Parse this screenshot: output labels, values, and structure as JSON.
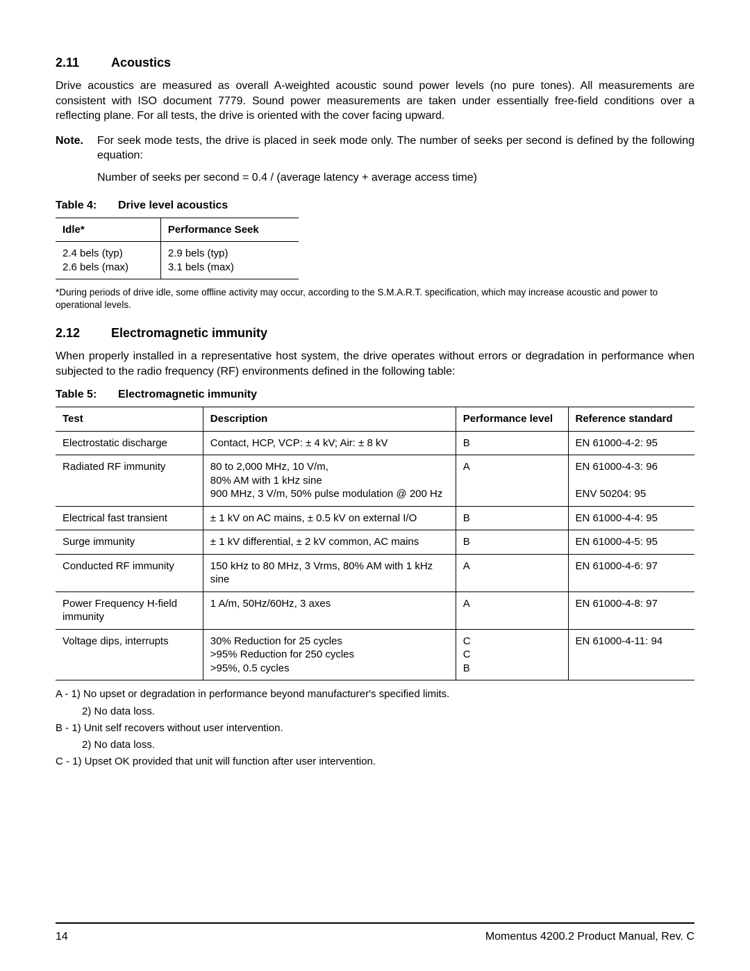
{
  "section211": {
    "num": "2.11",
    "title": "Acoustics",
    "para1": "Drive acoustics are measured as overall A-weighted acoustic sound power levels (no pure tones). All measurements are consistent with ISO document 7779. Sound power measurements are taken under essentially free-field conditions over a reflecting plane. For all tests, the drive is oriented with the cover facing upward.",
    "note_label": "Note.",
    "note_text": "For seek mode tests, the drive is placed in seek mode only. The number of seeks per second is defined by the following equation:",
    "equation": "Number of seeks per second = 0.4 / (average latency + average access time)"
  },
  "table4": {
    "caption_num": "Table 4:",
    "caption_title": "Drive level acoustics",
    "headers": [
      "Idle*",
      "Performance Seek"
    ],
    "row": [
      "2.4 bels (typ)\n2.6 bels (max)",
      "2.9 bels (typ)\n3.1 bels (max)"
    ],
    "footnote": "*During periods of drive idle, some offline activity may occur, according to the S.M.A.R.T. specification, which may increase acoustic and power to operational levels."
  },
  "section212": {
    "num": "2.12",
    "title": "Electromagnetic immunity",
    "para1": "When properly installed in a representative host system, the drive operates without errors or degradation in performance when subjected to the radio frequency (RF) environments defined in the following table:"
  },
  "table5": {
    "caption_num": "Table 5:",
    "caption_title": "Electromagnetic immunity",
    "headers": [
      "Test",
      "Description",
      "Performance level",
      "Reference standard"
    ],
    "rows": [
      [
        "Electrostatic discharge",
        "Contact, HCP, VCP: ± 4 kV; Air: ± 8 kV",
        "B",
        "EN 61000-4-2: 95"
      ],
      [
        "Radiated RF immunity",
        "80 to 2,000 MHz, 10 V/m,\n80% AM with 1 kHz sine\n900 MHz, 3 V/m, 50% pulse modulation @ 200 Hz",
        "A",
        "EN 61000-4-3: 96\n\nENV 50204: 95"
      ],
      [
        "Electrical fast transient",
        "± 1 kV on AC mains, ± 0.5 kV on external I/O",
        "B",
        "EN 61000-4-4: 95"
      ],
      [
        "Surge immunity",
        "± 1 kV differential, ± 2 kV common, AC mains",
        "B",
        "EN 61000-4-5: 95"
      ],
      [
        "Conducted RF immunity",
        "150 kHz to 80 MHz, 3 Vrms, 80% AM with 1 kHz sine",
        "A",
        "EN 61000-4-6: 97"
      ],
      [
        "Power Frequency H-field immunity",
        "1 A/m, 50Hz/60Hz, 3 axes",
        "A",
        "EN 61000-4-8: 97"
      ],
      [
        "Voltage dips, interrupts",
        "30% Reduction for 25 cycles\n>95% Reduction for 250 cycles\n>95%, 0.5 cycles",
        "C\nC\nB",
        "EN 61000-4-11: 94"
      ]
    ]
  },
  "legend": {
    "a1": "A - 1) No upset or degradation in performance beyond manufacturer's specified limits.",
    "a2": "2) No data loss.",
    "b1": "B - 1) Unit self recovers without user intervention.",
    "b2": "2) No data loss.",
    "c1": "C - 1) Upset OK provided that unit will function after user intervention."
  },
  "footer": {
    "page": "14",
    "doc": "Momentus 4200.2 Product Manual, Rev. C"
  }
}
